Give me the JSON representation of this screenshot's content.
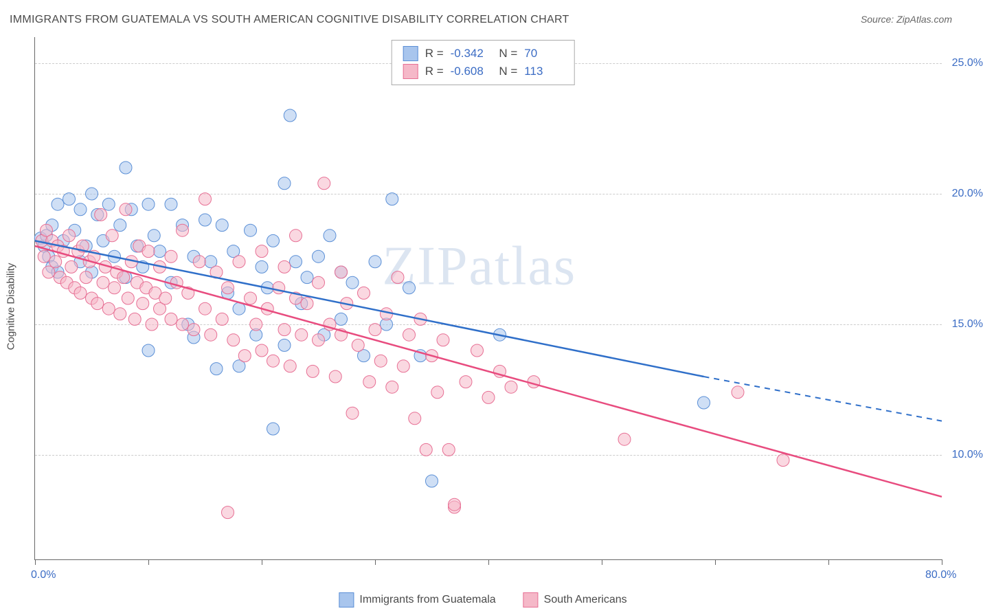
{
  "title": "IMMIGRANTS FROM GUATEMALA VS SOUTH AMERICAN COGNITIVE DISABILITY CORRELATION CHART",
  "source": "Source: ZipAtlas.com",
  "watermark": "ZIPatlas",
  "y_axis_title": "Cognitive Disability",
  "chart": {
    "type": "scatter_with_regression",
    "xlim": [
      0,
      80
    ],
    "ylim": [
      6,
      26
    ],
    "x_ticks": [
      0,
      10,
      20,
      30,
      40,
      50,
      60,
      70,
      80
    ],
    "x_tick_labels": {
      "0": "0.0%",
      "80": "80.0%"
    },
    "y_gridlines": [
      10,
      15,
      20,
      25
    ],
    "y_tick_labels": {
      "10": "10.0%",
      "15": "15.0%",
      "20": "20.0%",
      "25": "25.0%"
    },
    "background_color": "#ffffff",
    "grid_color": "#cccccc",
    "axis_color": "#666666",
    "tick_label_color": "#3b6cc4",
    "marker_radius": 9,
    "marker_opacity": 0.55,
    "line_width": 2.5,
    "series": [
      {
        "name": "Immigrants from Guatemala",
        "color_fill": "#a8c5ed",
        "color_stroke": "#5b8fd6",
        "line_color": "#2f6fc9",
        "R": "-0.342",
        "N": "70",
        "regression": {
          "x1": 0,
          "y1": 18.2,
          "x2": 59,
          "y2": 13.0,
          "x2_dash": 80,
          "y2_dash": 11.3
        },
        "points": [
          [
            0.5,
            18.3
          ],
          [
            0.8,
            18.0
          ],
          [
            1.0,
            18.4
          ],
          [
            1.2,
            17.6
          ],
          [
            1.5,
            18.8
          ],
          [
            1.5,
            17.2
          ],
          [
            2.0,
            19.6
          ],
          [
            2.0,
            17.0
          ],
          [
            2.5,
            18.2
          ],
          [
            3.0,
            19.8
          ],
          [
            3.5,
            18.6
          ],
          [
            4.0,
            17.4
          ],
          [
            4.0,
            19.4
          ],
          [
            4.5,
            18.0
          ],
          [
            5.0,
            20.0
          ],
          [
            5.0,
            17.0
          ],
          [
            5.5,
            19.2
          ],
          [
            6.0,
            18.2
          ],
          [
            6.5,
            19.6
          ],
          [
            7.0,
            17.6
          ],
          [
            7.5,
            18.8
          ],
          [
            8.0,
            21.0
          ],
          [
            8.0,
            16.8
          ],
          [
            8.5,
            19.4
          ],
          [
            9.0,
            18.0
          ],
          [
            9.5,
            17.2
          ],
          [
            10,
            14.0
          ],
          [
            10,
            19.6
          ],
          [
            10.5,
            18.4
          ],
          [
            11,
            17.8
          ],
          [
            12,
            19.6
          ],
          [
            12,
            16.6
          ],
          [
            13,
            18.8
          ],
          [
            13.5,
            15.0
          ],
          [
            14,
            17.6
          ],
          [
            14,
            14.5
          ],
          [
            15,
            19.0
          ],
          [
            15.5,
            17.4
          ],
          [
            16,
            13.3
          ],
          [
            16.5,
            18.8
          ],
          [
            17,
            16.2
          ],
          [
            17.5,
            17.8
          ],
          [
            18,
            15.6
          ],
          [
            18,
            13.4
          ],
          [
            19,
            18.6
          ],
          [
            19.5,
            14.6
          ],
          [
            20,
            17.2
          ],
          [
            20.5,
            16.4
          ],
          [
            21,
            18.2
          ],
          [
            21,
            11.0
          ],
          [
            22,
            14.2
          ],
          [
            22,
            20.4
          ],
          [
            22.5,
            23.0
          ],
          [
            23,
            17.4
          ],
          [
            23.5,
            15.8
          ],
          [
            24,
            16.8
          ],
          [
            25,
            17.6
          ],
          [
            25.5,
            14.6
          ],
          [
            26,
            18.4
          ],
          [
            27,
            15.2
          ],
          [
            27,
            17.0
          ],
          [
            28,
            16.6
          ],
          [
            29,
            13.8
          ],
          [
            30,
            17.4
          ],
          [
            31,
            15.0
          ],
          [
            31.5,
            19.8
          ],
          [
            33,
            16.4
          ],
          [
            34,
            13.8
          ],
          [
            35,
            9.0
          ],
          [
            41,
            14.6
          ],
          [
            59,
            12.0
          ]
        ]
      },
      {
        "name": "South Americans",
        "color_fill": "#f5b8c8",
        "color_stroke": "#e76f94",
        "line_color": "#e84c7f",
        "R": "-0.608",
        "N": "113",
        "regression": {
          "x1": 0,
          "y1": 18.0,
          "x2": 80,
          "y2": 8.4,
          "x2_dash": 80,
          "y2_dash": 8.4
        },
        "points": [
          [
            0.6,
            18.2
          ],
          [
            0.8,
            17.6
          ],
          [
            1.0,
            18.6
          ],
          [
            1.2,
            17.0
          ],
          [
            1.5,
            18.2
          ],
          [
            1.8,
            17.4
          ],
          [
            2.0,
            18.0
          ],
          [
            2.2,
            16.8
          ],
          [
            2.5,
            17.8
          ],
          [
            2.8,
            16.6
          ],
          [
            3.0,
            18.4
          ],
          [
            3.2,
            17.2
          ],
          [
            3.5,
            16.4
          ],
          [
            3.8,
            17.8
          ],
          [
            4.0,
            16.2
          ],
          [
            4.2,
            18.0
          ],
          [
            4.5,
            16.8
          ],
          [
            4.8,
            17.4
          ],
          [
            5.0,
            16.0
          ],
          [
            5.2,
            17.6
          ],
          [
            5.5,
            15.8
          ],
          [
            5.8,
            19.2
          ],
          [
            6.0,
            16.6
          ],
          [
            6.2,
            17.2
          ],
          [
            6.5,
            15.6
          ],
          [
            6.8,
            18.4
          ],
          [
            7.0,
            16.4
          ],
          [
            7.2,
            17.0
          ],
          [
            7.5,
            15.4
          ],
          [
            7.8,
            16.8
          ],
          [
            8.0,
            19.4
          ],
          [
            8.2,
            16.0
          ],
          [
            8.5,
            17.4
          ],
          [
            8.8,
            15.2
          ],
          [
            9.0,
            16.6
          ],
          [
            9.2,
            18.0
          ],
          [
            9.5,
            15.8
          ],
          [
            9.8,
            16.4
          ],
          [
            10,
            17.8
          ],
          [
            10.3,
            15.0
          ],
          [
            10.6,
            16.2
          ],
          [
            11,
            17.2
          ],
          [
            11,
            15.6
          ],
          [
            11.5,
            16.0
          ],
          [
            12,
            17.6
          ],
          [
            12,
            15.2
          ],
          [
            12.5,
            16.6
          ],
          [
            13,
            18.6
          ],
          [
            13,
            15.0
          ],
          [
            13.5,
            16.2
          ],
          [
            14,
            14.8
          ],
          [
            14.5,
            17.4
          ],
          [
            15,
            15.6
          ],
          [
            15,
            19.8
          ],
          [
            15.5,
            14.6
          ],
          [
            16,
            17.0
          ],
          [
            16.5,
            15.2
          ],
          [
            17,
            16.4
          ],
          [
            17,
            7.8
          ],
          [
            17.5,
            14.4
          ],
          [
            18,
            17.4
          ],
          [
            18.5,
            13.8
          ],
          [
            19,
            16.0
          ],
          [
            19.5,
            15.0
          ],
          [
            20,
            14.0
          ],
          [
            20,
            17.8
          ],
          [
            20.5,
            15.6
          ],
          [
            21,
            13.6
          ],
          [
            21.5,
            16.4
          ],
          [
            22,
            14.8
          ],
          [
            22,
            17.2
          ],
          [
            22.5,
            13.4
          ],
          [
            23,
            16.0
          ],
          [
            23,
            18.4
          ],
          [
            23.5,
            14.6
          ],
          [
            24,
            15.8
          ],
          [
            24.5,
            13.2
          ],
          [
            25,
            16.6
          ],
          [
            25,
            14.4
          ],
          [
            25.5,
            20.4
          ],
          [
            26,
            15.0
          ],
          [
            26.5,
            13.0
          ],
          [
            27,
            17.0
          ],
          [
            27,
            14.6
          ],
          [
            27.5,
            15.8
          ],
          [
            28,
            11.6
          ],
          [
            28.5,
            14.2
          ],
          [
            29,
            16.2
          ],
          [
            29.5,
            12.8
          ],
          [
            30,
            14.8
          ],
          [
            30.5,
            13.6
          ],
          [
            31,
            15.4
          ],
          [
            31.5,
            12.6
          ],
          [
            32,
            16.8
          ],
          [
            32.5,
            13.4
          ],
          [
            33,
            14.6
          ],
          [
            33.5,
            11.4
          ],
          [
            34,
            15.2
          ],
          [
            34.5,
            10.2
          ],
          [
            35,
            13.8
          ],
          [
            35.5,
            12.4
          ],
          [
            36,
            14.4
          ],
          [
            36.5,
            10.2
          ],
          [
            37,
            8.0
          ],
          [
            37,
            8.1
          ],
          [
            38,
            12.8
          ],
          [
            39,
            14.0
          ],
          [
            40,
            12.2
          ],
          [
            41,
            13.2
          ],
          [
            42,
            12.6
          ],
          [
            44,
            12.8
          ],
          [
            52,
            10.6
          ],
          [
            62,
            12.4
          ],
          [
            66,
            9.8
          ]
        ]
      }
    ]
  },
  "legend_bottom": [
    {
      "label": "Immigrants from Guatemala",
      "fill": "#a8c5ed",
      "stroke": "#5b8fd6"
    },
    {
      "label": "South Americans",
      "fill": "#f5b8c8",
      "stroke": "#e76f94"
    }
  ]
}
